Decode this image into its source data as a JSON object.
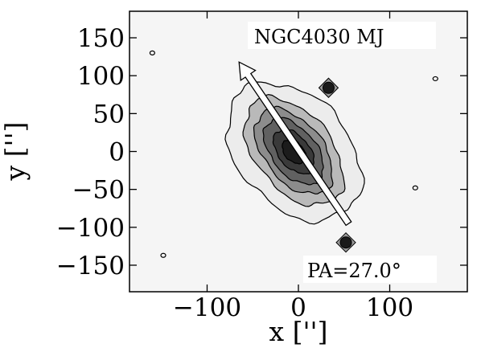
{
  "chart_data": {
    "type": "heatmap",
    "title": "",
    "object_label": "NGC4030 MJ",
    "pa_label": "PA=27.0$^\\circ$",
    "pa_label_text": "PA=27.0°",
    "position_angle_deg": 27.0,
    "xlabel": "x ['']",
    "ylabel": "y ['']",
    "xlim": [
      -185,
      185
    ],
    "ylim": [
      -185,
      185
    ],
    "x_ticks": [
      -100,
      0,
      100
    ],
    "x_tick_labels": [
      "−100",
      "0",
      "100"
    ],
    "y_ticks": [
      150,
      100,
      50,
      0,
      -50,
      -100,
      -150
    ],
    "y_tick_labels": [
      "150",
      "100",
      "50",
      "0",
      "−50",
      "−100",
      "−150"
    ],
    "grid": false,
    "contour_levels": [
      {
        "level": 1,
        "semi_major": 98,
        "semi_minor": 64,
        "fill": "#ececec"
      },
      {
        "level": 2,
        "semi_major": 78,
        "semi_minor": 44,
        "fill": "#b9b9b9"
      },
      {
        "level": 3,
        "semi_major": 62,
        "semi_minor": 34,
        "fill": "#8c8c8c"
      },
      {
        "level": 4,
        "semi_major": 48,
        "semi_minor": 26,
        "fill": "#616161"
      },
      {
        "level": 5,
        "semi_major": 32,
        "semi_minor": 18,
        "fill": "#3a3a3a"
      },
      {
        "level": 6,
        "semi_major": 17,
        "semi_minor": 11,
        "fill": "#1c1c1c"
      }
    ],
    "galaxy_center": [
      -5,
      0
    ],
    "point_sources": [
      {
        "x": 33,
        "y": 84
      },
      {
        "x": 52,
        "y": -120
      }
    ],
    "pa_arrow": {
      "from": [
        55,
        -95
      ],
      "to": [
        -65,
        118
      ]
    },
    "colors": {
      "background": "#f5f5f5",
      "contour_line": "#000000",
      "arrow": "#ffffff"
    }
  }
}
